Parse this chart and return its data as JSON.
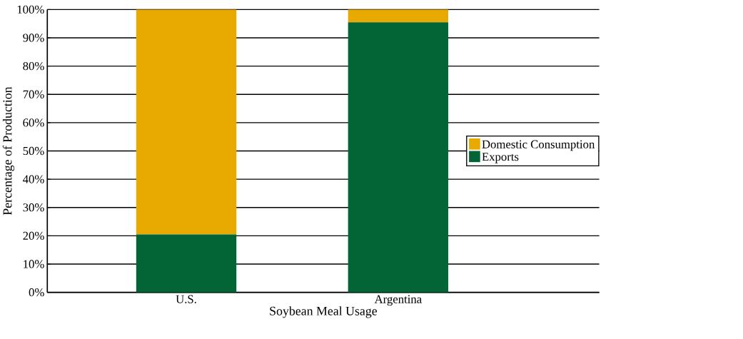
{
  "chart_data": {
    "type": "bar",
    "stacked": true,
    "xlabel": "Soybean Meal Usage",
    "ylabel": "Percentage of Production",
    "categories": [
      "U.S.",
      "Argentina"
    ],
    "series": [
      {
        "name": "Exports",
        "color": "#036535",
        "values": [
          20.5,
          95.5
        ]
      },
      {
        "name": "Domestic Consumption",
        "color": "#e8a900",
        "values": [
          79.5,
          4.5
        ]
      }
    ],
    "ylim": [
      0,
      100
    ],
    "yticks": [
      {
        "value": 0,
        "label": "0%"
      },
      {
        "value": 10,
        "label": "10%"
      },
      {
        "value": 20,
        "label": "20%"
      },
      {
        "value": 30,
        "label": "30%"
      },
      {
        "value": 40,
        "label": "40%"
      },
      {
        "value": 50,
        "label": "50%"
      },
      {
        "value": 60,
        "label": "60%"
      },
      {
        "value": 70,
        "label": "70%"
      },
      {
        "value": 80,
        "label": "80%"
      },
      {
        "value": 90,
        "label": "90%"
      },
      {
        "value": 100,
        "label": "100%"
      }
    ],
    "grid": "y",
    "legend": "right"
  }
}
